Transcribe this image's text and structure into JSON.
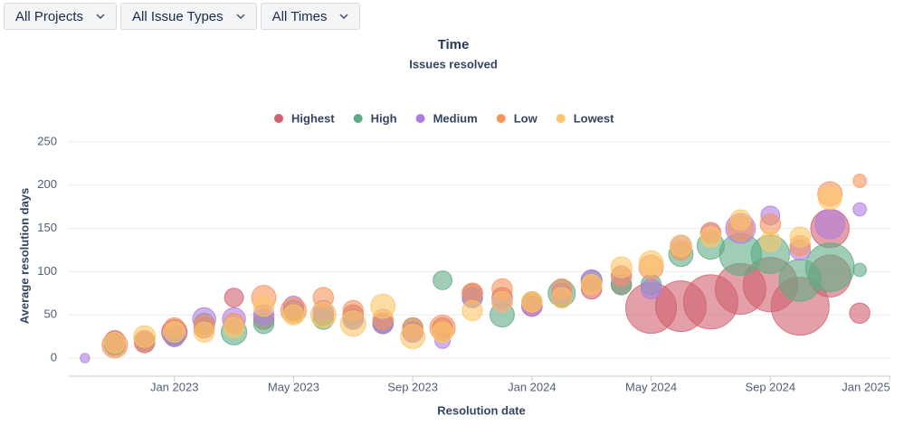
{
  "filters": [
    "All Projects",
    "All Issue Types",
    "All Times"
  ],
  "chart_data": {
    "type": "scatter",
    "title": "Time",
    "subtitle": "Issues resolved",
    "x_label": "Resolution date",
    "y_label": "Average resolution days",
    "xlim": [
      "2022-09",
      "2025-01"
    ],
    "xticks": [
      {
        "value": "2023-01",
        "label": "Jan 2023"
      },
      {
        "value": "2023-05",
        "label": "May 2023"
      },
      {
        "value": "2023-09",
        "label": "Sep 2023"
      },
      {
        "value": "2024-01",
        "label": "Jan 2024"
      },
      {
        "value": "2024-05",
        "label": "May 2024"
      },
      {
        "value": "2024-09",
        "label": "Sep 2024"
      },
      {
        "value": "2025-01",
        "label": "Jan 2025"
      }
    ],
    "ylim": [
      0,
      250
    ],
    "yticks": [
      0,
      50,
      100,
      150,
      200,
      250
    ],
    "grid": true,
    "series": [
      {
        "name": "Highest",
        "color": "#d1616f",
        "x": [
          "2022-11",
          "2022-12",
          "2023-01",
          "2023-02",
          "2023-03",
          "2023-04",
          "2023-05",
          "2023-06",
          "2023-07",
          "2023-08",
          "2023-09",
          "2023-10",
          "2023-11",
          "2023-12",
          "2024-01",
          "2024-02",
          "2024-03",
          "2024-04",
          "2024-05",
          "2024-06",
          "2024-07",
          "2024-08",
          "2024-09",
          "2024-10",
          "2024-11",
          "2024-11",
          "2024-12"
        ],
        "values": [
          20,
          18,
          30,
          35,
          70,
          45,
          55,
          50,
          50,
          40,
          30,
          35,
          75,
          70,
          60,
          70,
          80,
          85,
          58,
          60,
          65,
          80,
          85,
          60,
          150,
          95,
          52
        ],
        "size": [
          14,
          14,
          22,
          14,
          12,
          14,
          14,
          14,
          14,
          14,
          14,
          14,
          14,
          14,
          14,
          14,
          14,
          14,
          87,
          87,
          100,
          87,
          100,
          114,
          50,
          60,
          14
        ]
      },
      {
        "name": "High",
        "color": "#5fab85",
        "x": [
          "2022-11",
          "2022-12",
          "2023-01",
          "2023-02",
          "2023-03",
          "2023-04",
          "2023-05",
          "2023-06",
          "2023-07",
          "2023-08",
          "2023-09",
          "2023-10",
          "2023-11",
          "2023-12",
          "2024-01",
          "2024-02",
          "2024-03",
          "2024-04",
          "2024-05",
          "2024-06",
          "2024-07",
          "2024-08",
          "2024-09",
          "2024-10",
          "2024-11",
          "2024-12"
        ],
        "values": [
          15,
          20,
          25,
          40,
          30,
          40,
          55,
          45,
          45,
          40,
          35,
          90,
          70,
          50,
          65,
          75,
          90,
          85,
          85,
          120,
          130,
          120,
          120,
          90,
          105,
          102
        ],
        "size": [
          15,
          14,
          14,
          14,
          22,
          14,
          14,
          14,
          14,
          14,
          14,
          12,
          14,
          20,
          14,
          25,
          14,
          14,
          14,
          20,
          25,
          60,
          50,
          60,
          80,
          6
        ]
      },
      {
        "name": "Medium",
        "color": "#b07ddd",
        "x": [
          "2022-10",
          "2022-11",
          "2022-12",
          "2023-01",
          "2023-02",
          "2023-03",
          "2023-04",
          "2023-05",
          "2023-06",
          "2023-07",
          "2023-08",
          "2023-09",
          "2023-10",
          "2023-11",
          "2023-12",
          "2024-01",
          "2024-02",
          "2024-03",
          "2024-04",
          "2024-05",
          "2024-06",
          "2024-07",
          "2024-08",
          "2024-09",
          "2024-10",
          "2024-11",
          "2024-12"
        ],
        "values": [
          0,
          18,
          20,
          25,
          45,
          45,
          50,
          60,
          55,
          45,
          40,
          30,
          20,
          70,
          65,
          60,
          75,
          90,
          95,
          80,
          130,
          145,
          150,
          165,
          125,
          155,
          172
        ],
        "size": [
          3,
          14,
          14,
          14,
          18,
          18,
          14,
          14,
          14,
          14,
          14,
          14,
          8,
          14,
          14,
          14,
          14,
          15,
          14,
          14,
          14,
          14,
          30,
          12,
          14,
          30,
          6
        ]
      },
      {
        "name": "Low",
        "color": "#f6945b",
        "x": [
          "2022-11",
          "2022-12",
          "2023-01",
          "2023-02",
          "2023-03",
          "2023-04",
          "2023-05",
          "2023-06",
          "2023-07",
          "2023-08",
          "2023-09",
          "2023-10",
          "2023-11",
          "2023-12",
          "2024-01",
          "2024-02",
          "2024-03",
          "2024-04",
          "2024-05",
          "2024-06",
          "2024-07",
          "2024-08",
          "2024-09",
          "2024-10",
          "2024-11",
          "2024-12"
        ],
        "values": [
          15,
          20,
          35,
          38,
          40,
          70,
          55,
          70,
          55,
          45,
          35,
          35,
          75,
          80,
          65,
          80,
          85,
          95,
          105,
          125,
          145,
          150,
          155,
          130,
          190,
          205
        ],
        "size": [
          22,
          14,
          14,
          14,
          14,
          20,
          22,
          14,
          14,
          14,
          14,
          22,
          14,
          14,
          14,
          14,
          14,
          14,
          20,
          14,
          14,
          22,
          14,
          14,
          20,
          6
        ]
      },
      {
        "name": "Lowest",
        "color": "#fbc768",
        "x": [
          "2022-11",
          "2022-12",
          "2023-01",
          "2023-02",
          "2023-03",
          "2023-04",
          "2023-05",
          "2023-06",
          "2023-07",
          "2023-08",
          "2023-09",
          "2023-10",
          "2023-11",
          "2023-12",
          "2024-01",
          "2024-02",
          "2024-03",
          "2024-04",
          "2024-05",
          "2024-06",
          "2024-07",
          "2024-08",
          "2024-09",
          "2024-10",
          "2024-11"
        ],
        "values": [
          18,
          25,
          30,
          30,
          35,
          60,
          50,
          50,
          40,
          60,
          25,
          30,
          55,
          65,
          65,
          70,
          85,
          105,
          110,
          130,
          140,
          160,
          135,
          140,
          185
        ],
        "size": [
          14,
          16,
          14,
          14,
          14,
          14,
          14,
          22,
          22,
          20,
          20,
          14,
          14,
          14,
          14,
          14,
          14,
          15,
          20,
          16,
          14,
          14,
          14,
          14,
          18
        ]
      }
    ]
  }
}
